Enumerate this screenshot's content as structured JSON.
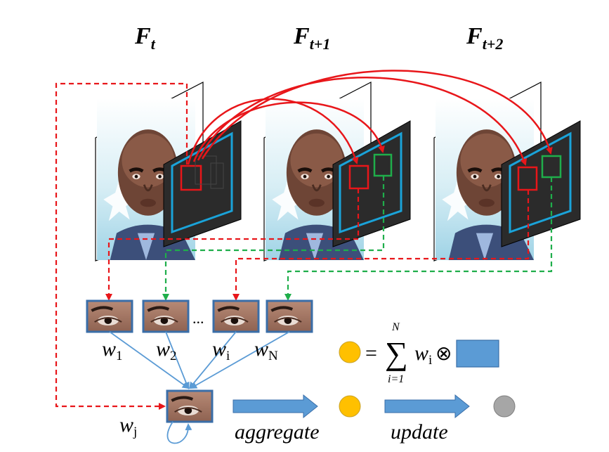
{
  "frames": [
    {
      "label_main": "F",
      "label_sub": "t"
    },
    {
      "label_main": "F",
      "label_sub": "t+1"
    },
    {
      "label_main": "F",
      "label_sub": "t+2"
    }
  ],
  "patches": {
    "weights": [
      {
        "main": "w",
        "sub": "1"
      },
      {
        "main": "w",
        "sub": "2"
      },
      {
        "main": "w",
        "sub": "i"
      },
      {
        "main": "w",
        "sub": "N"
      }
    ],
    "ellipsis": "...",
    "self_weight": {
      "main": "w",
      "sub": "j"
    }
  },
  "formula": {
    "equals": "=",
    "sum": "∑",
    "upper": "N",
    "lower": "i=1",
    "term_main": "w",
    "term_sub": "i",
    "op": "⊗"
  },
  "steps": {
    "aggregate": "aggregate",
    "update": "update"
  },
  "colors": {
    "red": "#e8161a",
    "green": "#1fae4b",
    "cyan": "#1aa3d9",
    "blue": "#5b9bd5",
    "orange": "#ffc000",
    "gray": "#a6a6a6",
    "dark": "#2b2b2b"
  }
}
